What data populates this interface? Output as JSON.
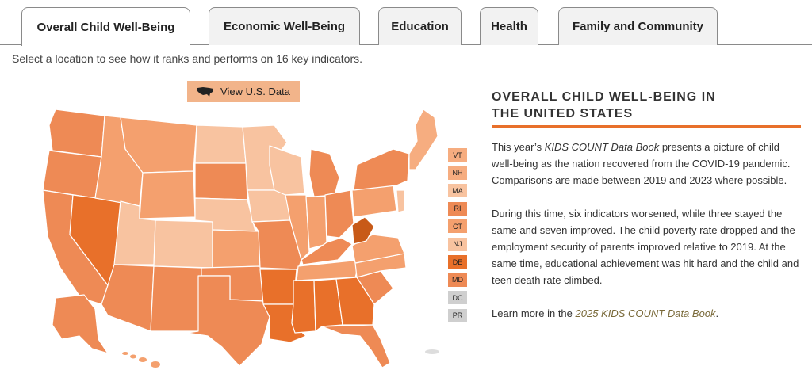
{
  "tabs": [
    {
      "label": "Overall Child Well-Being",
      "active": true
    },
    {
      "label": "Economic Well-Being",
      "active": false
    },
    {
      "label": "Education",
      "active": false
    },
    {
      "label": "Health",
      "active": false
    },
    {
      "label": "Family and Community",
      "active": false
    }
  ],
  "subtitle": "Select a location to see how it ranks and performs on 16 key indicators.",
  "view_us_button": {
    "label": "View U.S. Data",
    "icon": "us-map-icon"
  },
  "small_states": [
    {
      "abbr": "VT",
      "color": "#f6ad80"
    },
    {
      "abbr": "NH",
      "color": "#f6ad80"
    },
    {
      "abbr": "MA",
      "color": "#f8c3a0"
    },
    {
      "abbr": "RI",
      "color": "#ee8a55"
    },
    {
      "abbr": "CT",
      "color": "#f4a06e"
    },
    {
      "abbr": "NJ",
      "color": "#f8c3a0"
    },
    {
      "abbr": "DE",
      "color": "#e8702a"
    },
    {
      "abbr": "MD",
      "color": "#ee8a55"
    },
    {
      "abbr": "DC",
      "color": "#cfcfcf"
    },
    {
      "abbr": "PR",
      "color": "#cfcfcf"
    }
  ],
  "colors": {
    "accent": "#e8702a",
    "shade1": "#fcd8bf",
    "shade2": "#f8c3a0",
    "shade3": "#f4a06e",
    "shade4": "#ee8a55",
    "shade5": "#e8702a",
    "no_data": "#cfcfcf"
  },
  "panel": {
    "heading_line1": "OVERALL CHILD WELL-BEING IN",
    "heading_line2": "THE UNITED STATES",
    "p1_before": "This year’s ",
    "p1_italic": "KIDS COUNT Data Book",
    "p1_after": " presents a picture of child well-being as the nation recovered from the COVID-19 pandemic. Comparisons are made between 2019 and 2023 where possible.",
    "p2": "During this time, six indicators worsened, while three stayed the same and seven improved. The child poverty rate dropped and the employment security of parents improved relative to 2019. At the same time, educational achievement was hit hard and the child and teen death rate climbed.",
    "p3_before": "Learn more in the ",
    "p3_link": "2025 KIDS COUNT Data Book",
    "p3_after": "."
  }
}
